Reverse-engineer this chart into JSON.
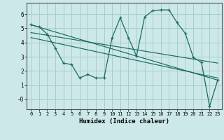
{
  "xlabel": "Humidex (Indice chaleur)",
  "bg_color": "#cce8e8",
  "grid_color": "#aacccc",
  "line_color": "#1a6b60",
  "xlim": [
    -0.5,
    23.5
  ],
  "ylim": [
    -0.7,
    6.8
  ],
  "yticks": [
    0,
    1,
    2,
    3,
    4,
    5,
    6
  ],
  "ytick_labels": [
    "-0",
    "1",
    "2",
    "3",
    "4",
    "5",
    "6"
  ],
  "xticks": [
    0,
    1,
    2,
    3,
    4,
    5,
    6,
    7,
    8,
    9,
    10,
    11,
    12,
    13,
    14,
    15,
    16,
    17,
    18,
    19,
    20,
    21,
    22,
    23
  ],
  "series1_x": [
    0,
    1,
    2,
    3,
    4,
    5,
    6,
    7,
    8,
    9,
    10,
    11,
    12,
    13,
    14,
    15,
    16,
    17,
    18,
    19,
    20,
    21,
    22,
    23
  ],
  "series1_y": [
    5.25,
    5.1,
    4.6,
    3.6,
    2.55,
    2.45,
    1.5,
    1.75,
    1.5,
    1.5,
    4.35,
    5.75,
    4.35,
    3.05,
    5.8,
    6.25,
    6.3,
    6.3,
    5.4,
    4.65,
    2.95,
    2.6,
    -0.5,
    1.35
  ],
  "line1_x": [
    0,
    23
  ],
  "line1_y": [
    5.25,
    1.35
  ],
  "line2_x": [
    0,
    23
  ],
  "line2_y": [
    4.7,
    2.55
  ],
  "line3_x": [
    0,
    23
  ],
  "line3_y": [
    4.35,
    1.5
  ]
}
